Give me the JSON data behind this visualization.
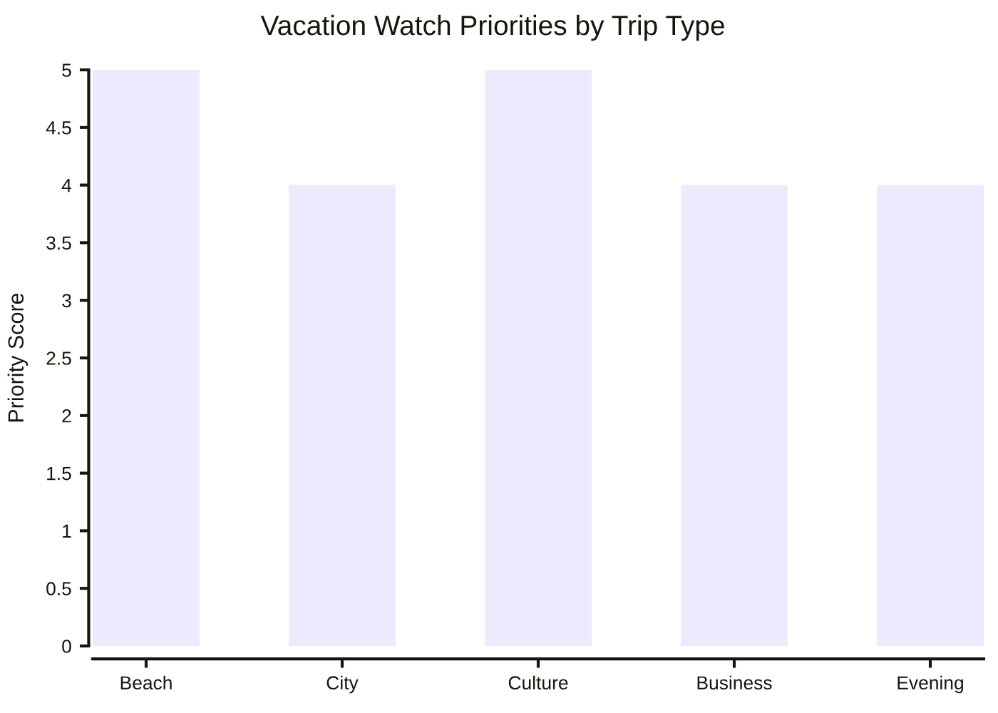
{
  "chart_data": {
    "type": "bar",
    "title": "Vacation Watch Priorities by Trip Type",
    "ylabel": "Priority Score",
    "categories": [
      "Beach",
      "City",
      "Culture",
      "Business",
      "Evening"
    ],
    "values": [
      5,
      4,
      5,
      4,
      4
    ],
    "color": "#ebebfd",
    "ylim": [
      0,
      5
    ],
    "yticks": [
      0,
      0.5,
      1,
      1.5,
      2,
      2.5,
      3,
      3.5,
      4,
      4.5,
      5
    ],
    "grid": false,
    "legend": false
  }
}
